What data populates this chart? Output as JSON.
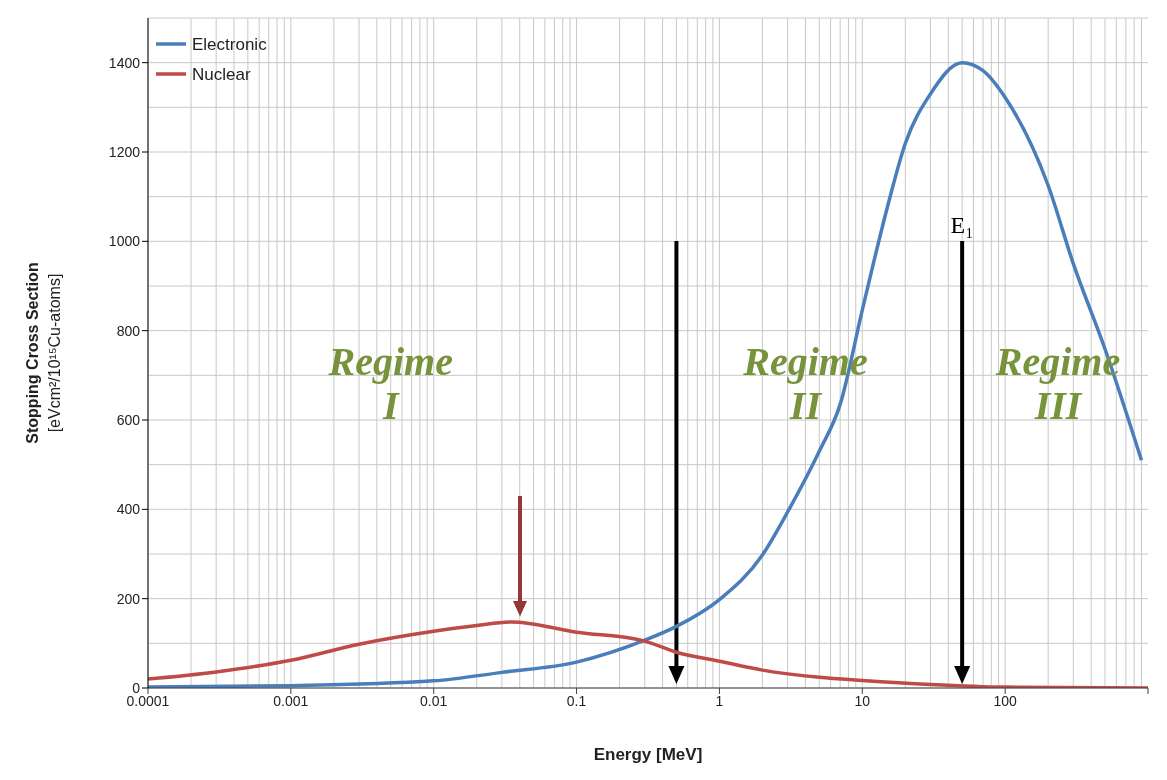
{
  "chart_data": {
    "type": "line",
    "xlabel": "Energy [MeV]",
    "ylabel": "Stopping Cross Section [eVcm²/10¹⁵Cu-atoms]",
    "log": "x",
    "xlim": [
      0.0001,
      1000
    ],
    "xticks": [
      0.0001,
      0.001,
      0.01,
      0.1,
      1,
      10,
      100,
      {
        "value": 1000,
        "label": null
      }
    ],
    "ylim": [
      0,
      1500
    ],
    "yticks": [
      0,
      200,
      400,
      600,
      800,
      1000,
      1200,
      1400
    ],
    "grid": true,
    "legend": "top left",
    "marker": "none",
    "line_style": "solid",
    "series": [
      {
        "name": "Electronic",
        "color": "#4a7ebb",
        "x": [
          0.0001,
          0.001,
          0.01,
          0.03,
          0.1,
          0.3,
          0.5,
          1,
          2,
          3,
          5,
          7,
          10,
          15,
          20,
          30,
          50,
          70,
          100,
          200,
          300,
          500,
          900
        ],
        "values": [
          2,
          5,
          16,
          35,
          58,
          107,
          138,
          198,
          298,
          394,
          530,
          635,
          846,
          1077,
          1219,
          1330,
          1400,
          1382,
          1322,
          1125,
          950,
          759,
          510
        ]
      },
      {
        "name": "Nuclear",
        "color": "#be4b48",
        "x": [
          0.0001,
          0.0003,
          0.001,
          0.003,
          0.01,
          0.02,
          0.035,
          0.1,
          0.3,
          0.5,
          1,
          2,
          5,
          10,
          30,
          100,
          1000
        ],
        "values": [
          20,
          36,
          62,
          98,
          127,
          140,
          148,
          125,
          105,
          80,
          60,
          40,
          24,
          17,
          8,
          2,
          0
        ]
      }
    ],
    "ref_lines": [
      {
        "axis": "x",
        "value": 0.5,
        "color": "#000000"
      },
      {
        "axis": "x",
        "value": 50,
        "label": "E₁",
        "color": "#000000"
      }
    ],
    "annotations": [
      "Regime I",
      "Regime II",
      "Regime III"
    ]
  }
}
